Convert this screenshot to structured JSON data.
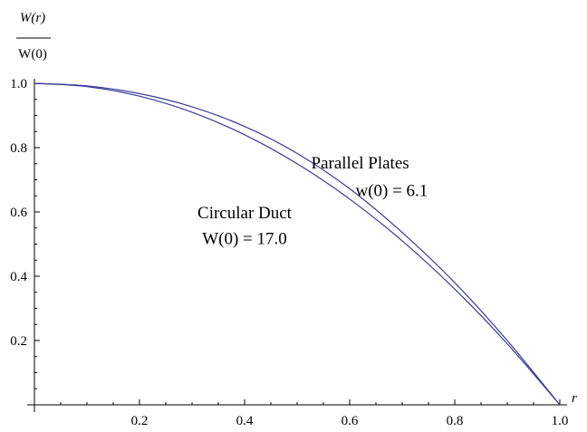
{
  "chart_data": {
    "type": "line",
    "ylabel_numerator": "W(r)",
    "ylabel_denominator": "W(0)",
    "xlabel": "r",
    "xlim": [
      0,
      1
    ],
    "ylim": [
      0,
      1
    ],
    "xticks": [
      0.2,
      0.4,
      0.6,
      0.8,
      1.0
    ],
    "xtick_labels": [
      "0.2",
      "0.4",
      "0.6",
      "0.8",
      "1.0"
    ],
    "yticks": [
      0.2,
      0.4,
      0.6,
      0.8,
      1.0
    ],
    "ytick_labels": [
      "0.2",
      "0.4",
      "0.6",
      "0.8",
      "1.0"
    ],
    "line_color": "#3a3a9a",
    "series": [
      {
        "x": [
          0,
          0.1,
          0.2,
          0.3,
          0.4,
          0.5,
          0.6,
          0.7,
          0.8,
          0.9,
          1.0
        ],
        "values": [
          1.0,
          0.99,
          0.96,
          0.91,
          0.84,
          0.75,
          0.64,
          0.51,
          0.36,
          0.19,
          0.0
        ]
      },
      {
        "x": [
          0,
          0.1,
          0.2,
          0.3,
          0.4,
          0.5,
          0.6,
          0.7,
          0.8,
          0.9,
          1.0
        ],
        "values": [
          1.0,
          0.992,
          0.968,
          0.927,
          0.866,
          0.782,
          0.672,
          0.536,
          0.38,
          0.2,
          0.0
        ]
      }
    ],
    "annotations": [
      {
        "text": "Parallel Plates",
        "x": 0.62,
        "y": 0.735
      },
      {
        "text": "w(0) = 6.1",
        "x": 0.68,
        "y": 0.65
      },
      {
        "text": "Circular Duct",
        "x": 0.4,
        "y": 0.58
      },
      {
        "text": "W(0) = 17.0",
        "x": 0.4,
        "y": 0.5
      }
    ]
  }
}
